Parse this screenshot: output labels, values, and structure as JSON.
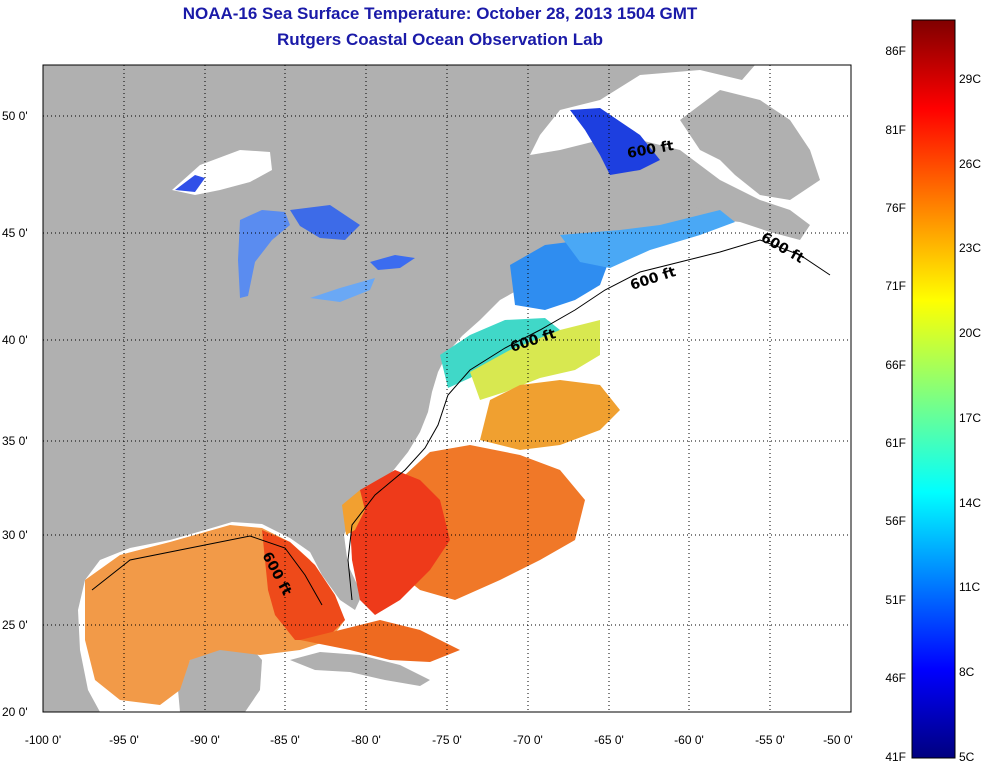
{
  "header": {
    "title": "NOAA-16 Sea Surface Temperature:  October 28, 2013 1504 GMT",
    "subtitle": "Rutgers Coastal Ocean Observation Lab"
  },
  "map": {
    "lat_ticks": [
      "50 0'",
      "45 0'",
      "40 0'",
      "35 0'",
      "30 0'",
      "25 0'",
      "20 0'"
    ],
    "lon_ticks": [
      "-100 0'",
      "-95 0'",
      "-90 0'",
      "-85 0'",
      "-80 0'",
      "-75 0'",
      "-70 0'",
      "-65 0'",
      "-60 0'",
      "-55 0'",
      "-50 0'"
    ],
    "contour_label": "600 ft",
    "colors": {
      "land": "#b0b0b0",
      "ocean_no_data": "#ffffff",
      "grid": "#000000"
    }
  },
  "colorbar": {
    "f_labels": [
      "86F",
      "81F",
      "76F",
      "71F",
      "66F",
      "61F",
      "56F",
      "51F",
      "46F",
      "41F"
    ],
    "c_labels": [
      "29C",
      "26C",
      "23C",
      "20C",
      "17C",
      "14C",
      "11C",
      "8C",
      "5C"
    ]
  }
}
